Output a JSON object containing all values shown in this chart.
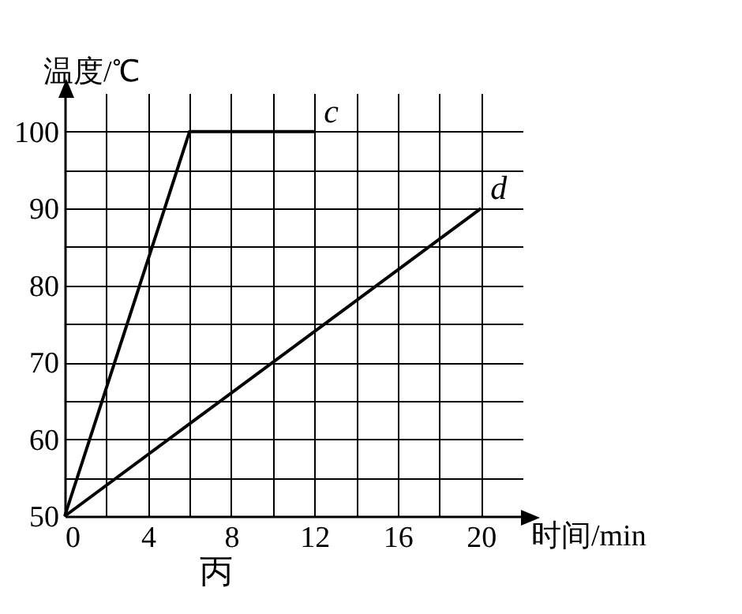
{
  "chart_data": {
    "type": "line",
    "xlabel": "时间/min",
    "ylabel": "温度/℃",
    "annotations": [
      "丙"
    ],
    "series": [
      {
        "name": "c",
        "color": "#000000",
        "x": [
          0,
          6,
          12
        ],
        "values": [
          50,
          100,
          100
        ]
      },
      {
        "name": "d",
        "color": "#000000",
        "x": [
          0,
          20
        ],
        "values": [
          50,
          90
        ]
      }
    ],
    "xlim": [
      0,
      22
    ],
    "ylim": [
      50,
      105
    ],
    "xticks": [
      0,
      {
        "value": 2,
        "label": null
      },
      4,
      {
        "value": 6,
        "label": null
      },
      8,
      {
        "value": 10,
        "label": null
      },
      12,
      {
        "value": 14,
        "label": null
      },
      16,
      {
        "value": 18,
        "label": null
      },
      20
    ],
    "yticks": [
      50,
      {
        "value": 55,
        "label": null
      },
      60,
      {
        "value": 65,
        "label": null
      },
      70,
      {
        "value": 75,
        "label": null
      },
      80,
      {
        "value": 85,
        "label": null
      },
      90,
      {
        "value": 95,
        "label": null
      },
      100
    ],
    "grid": true,
    "legend": false,
    "marker": "none",
    "line_style": "solid"
  }
}
